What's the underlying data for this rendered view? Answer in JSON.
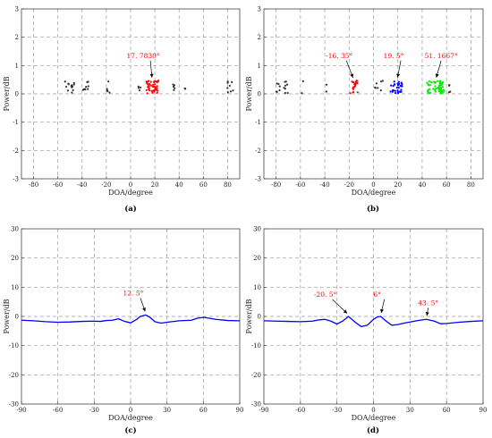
{
  "chart_data": [
    {
      "id": "a",
      "panel_label": "(a)",
      "type": "scatter",
      "xlabel": "DOA/degree",
      "ylabel": "Power/dB",
      "xlim": [
        -90,
        90
      ],
      "ylim": [
        -3,
        3
      ],
      "xticks": [
        -80,
        -60,
        -40,
        -20,
        0,
        20,
        40,
        60,
        80
      ],
      "yticks": [
        -3,
        -2,
        -1,
        0,
        1,
        2,
        3
      ],
      "grid": true,
      "series": [
        {
          "color": "#333333",
          "clusters": [
            {
              "x": -50,
              "spread": 4,
              "n": 14
            },
            {
              "x": -37,
              "spread": 2.5,
              "n": 9
            },
            {
              "x": -19,
              "spread": 2,
              "n": 6
            },
            {
              "x": 7,
              "spread": 1.5,
              "n": 4
            },
            {
              "x": 35,
              "spread": 1.5,
              "n": 5
            },
            {
              "x": 45,
              "spread": 0.8,
              "n": 2
            },
            {
              "x": 82,
              "spread": 2.5,
              "n": 8
            }
          ]
        },
        {
          "color": "#ff0000",
          "clusters": [
            {
              "x": 18,
              "spread": 5,
              "n": 45
            }
          ]
        }
      ],
      "annotations": [
        {
          "text": "17. 7830°",
          "x": 17.783,
          "y": 0.45,
          "color": "#ff0000"
        }
      ]
    },
    {
      "id": "b",
      "panel_label": "(b)",
      "type": "scatter",
      "xlabel": "DOA/degree",
      "ylabel": "Power/dB",
      "xlim": [
        -90,
        90
      ],
      "ylim": [
        -3,
        3
      ],
      "xticks": [
        -80,
        -60,
        -40,
        -20,
        0,
        20,
        40,
        60,
        80
      ],
      "yticks": [
        -3,
        -2,
        -1,
        0,
        1,
        2,
        3
      ],
      "grid": true,
      "series": [
        {
          "color": "#333333",
          "clusters": [
            {
              "x": -75,
              "spread": 5,
              "n": 14
            },
            {
              "x": -58,
              "spread": 1,
              "n": 2
            },
            {
              "x": -38,
              "spread": 1,
              "n": 2
            },
            {
              "x": 2,
              "spread": 1.5,
              "n": 4
            },
            {
              "x": 7,
              "spread": 1,
              "n": 3
            },
            {
              "x": 63,
              "spread": 1.5,
              "n": 4
            }
          ]
        },
        {
          "color": "#ff0000",
          "clusters": [
            {
              "x": -16,
              "spread": 3,
              "n": 22
            }
          ]
        },
        {
          "color": "#0000ff",
          "clusters": [
            {
              "x": 19,
              "spread": 5,
              "n": 32
            }
          ]
        },
        {
          "color": "#00ee00",
          "clusters": [
            {
              "x": 51,
              "spread": 7,
              "n": 60
            }
          ]
        }
      ],
      "annotations": [
        {
          "text": "-16. 35°",
          "x": -16.35,
          "y": 0.45,
          "color": "#ff0000"
        },
        {
          "text": "19. 5°",
          "x": 19.5,
          "y": 0.45,
          "color": "#ff0000"
        },
        {
          "text": "51. 1667°",
          "x": 51.1667,
          "y": 0.45,
          "color": "#ff0000"
        }
      ]
    },
    {
      "id": "c",
      "panel_label": "(c)",
      "type": "line",
      "xlabel": "DOA/degree",
      "ylabel": "Power/dB",
      "xlim": [
        -90,
        90
      ],
      "ylim": [
        -30,
        30
      ],
      "xticks": [
        -90,
        -60,
        -30,
        0,
        30,
        60,
        90
      ],
      "yticks": [
        -30,
        -20,
        -10,
        0,
        10,
        20,
        30
      ],
      "grid": true,
      "series": [
        {
          "color": "#0000ff",
          "x": [
            -90,
            -80,
            -70,
            -60,
            -50,
            -40,
            -30,
            -25,
            -20,
            -15,
            -10,
            -5,
            0,
            5,
            8,
            12.5,
            16,
            20,
            25,
            30,
            40,
            50,
            55,
            60,
            65,
            70,
            80,
            90
          ],
          "y": [
            -1.3,
            -1.5,
            -1.8,
            -2.0,
            -1.9,
            -1.7,
            -1.6,
            -1.7,
            -1.4,
            -1.3,
            -0.8,
            -1.7,
            -2.2,
            -1.0,
            0.0,
            0.5,
            -0.3,
            -1.8,
            -2.3,
            -2.0,
            -1.5,
            -1.3,
            -0.6,
            -0.3,
            -0.6,
            -1.0,
            -1.4,
            -1.5
          ]
        }
      ],
      "annotations": [
        {
          "text": "12. 5°",
          "x": 12.5,
          "y": 0.5,
          "color": "#ff0000"
        }
      ]
    },
    {
      "id": "d",
      "panel_label": "(d)",
      "type": "line",
      "xlabel": "DOA/degree",
      "ylabel": "Power/dB",
      "xlim": [
        -90,
        90
      ],
      "ylim": [
        -30,
        30
      ],
      "xticks": [
        -90,
        -60,
        -30,
        0,
        30,
        60,
        90
      ],
      "yticks": [
        -30,
        -20,
        -10,
        0,
        10,
        20,
        30
      ],
      "grid": true,
      "series": [
        {
          "color": "#0000ff",
          "x": [
            -90,
            -80,
            -70,
            -60,
            -50,
            -45,
            -40,
            -35,
            -30,
            -25,
            -20.5,
            -15,
            -10,
            -5,
            0,
            3,
            6,
            10,
            15,
            20,
            25,
            30,
            38,
            43.5,
            50,
            55,
            60,
            70,
            80,
            90
          ],
          "y": [
            -1.5,
            -1.6,
            -1.7,
            -1.8,
            -1.6,
            -1.2,
            -1.0,
            -1.6,
            -2.6,
            -1.5,
            0.0,
            -2.0,
            -3.5,
            -3.0,
            -1.0,
            -0.2,
            0.0,
            -1.5,
            -3.0,
            -2.8,
            -2.3,
            -1.9,
            -1.3,
            -1.0,
            -1.6,
            -2.5,
            -2.4,
            -2.0,
            -1.7,
            -1.5
          ]
        }
      ],
      "annotations": [
        {
          "text": "-20. 5°",
          "x": -20.5,
          "y": 0.0,
          "color": "#ff0000"
        },
        {
          "text": "6°",
          "x": 6,
          "y": 0.0,
          "color": "#ff0000"
        },
        {
          "text": "43. 5°",
          "x": 43.5,
          "y": -1.0,
          "color": "#ff0000"
        }
      ]
    }
  ]
}
